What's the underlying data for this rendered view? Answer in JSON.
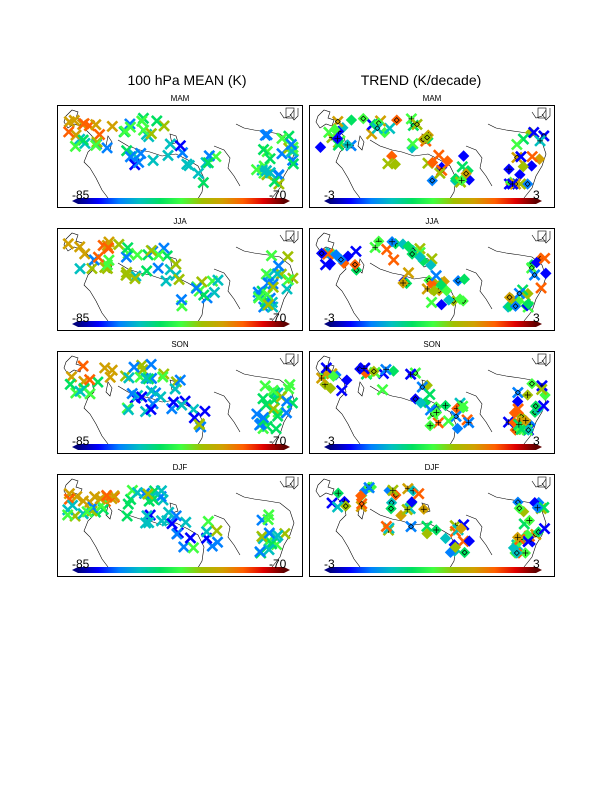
{
  "titles": {
    "mean": "100 hPa MEAN (K)",
    "trend": "TREND (K/decade)"
  },
  "seasons": [
    "MAM",
    "JJA",
    "SON",
    "DJF"
  ],
  "colorbars": {
    "mean": {
      "min_label": "-85",
      "max_label": "-70"
    },
    "trend": {
      "min_label": "-3",
      "max_label": "3"
    }
  },
  "colormap": [
    "#000080",
    "#0000ff",
    "#0080ff",
    "#00c0c0",
    "#00e060",
    "#40ff40",
    "#a0c000",
    "#d0a000",
    "#ff6000",
    "#e00000",
    "#600000"
  ],
  "marker_legend": {
    "mean_marker": "x-mark",
    "trend_significant": "plus",
    "trend_other": "diamond"
  }
}
